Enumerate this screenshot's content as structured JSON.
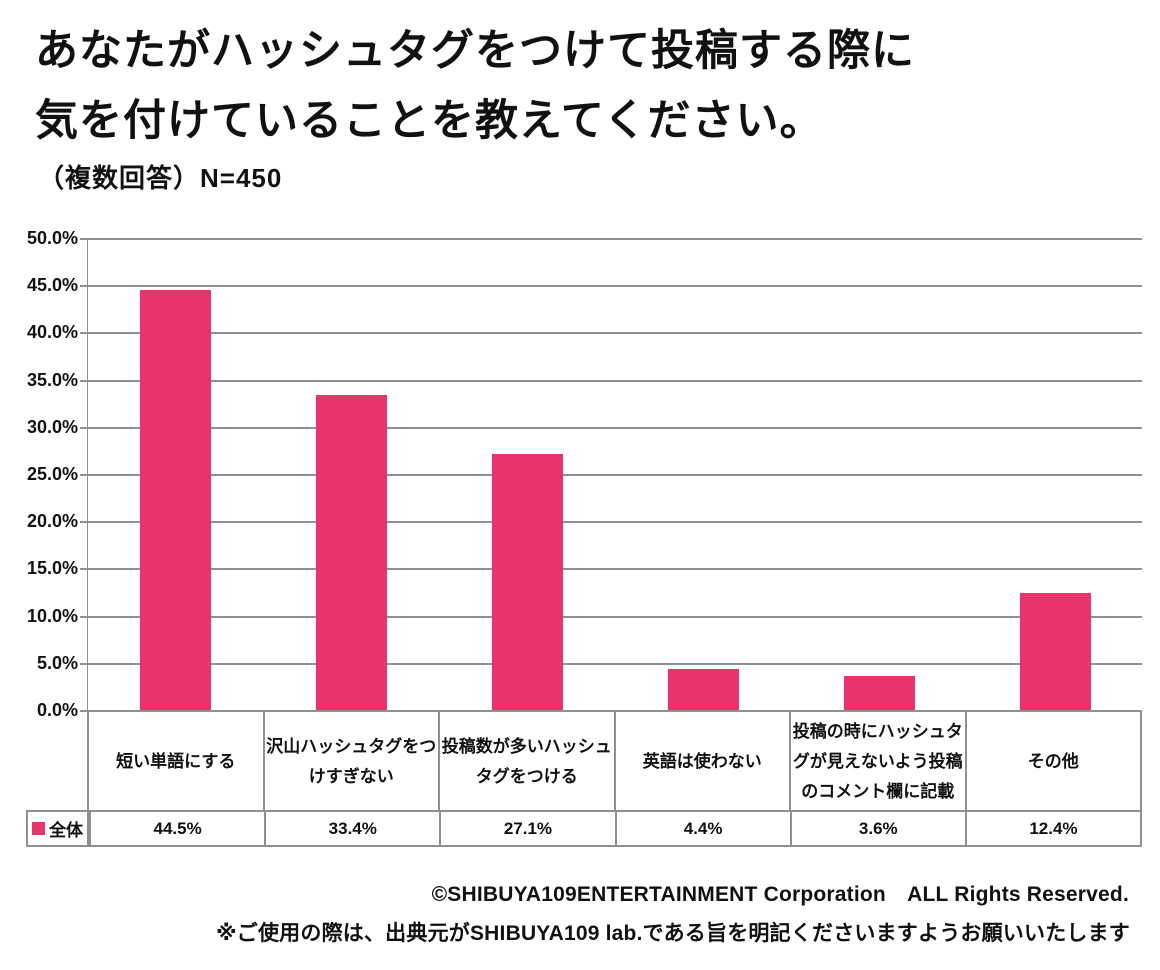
{
  "title": {
    "line1": "あなたがハッシュタグをつけて投稿する際に",
    "line2": "気を付けていることを教えてください。"
  },
  "subtitle": "（複数回答）N=450",
  "colors": {
    "bar": "#e9336b",
    "grid": "#8f8f8f",
    "text": "#111111",
    "background": "#ffffff"
  },
  "chart_data": {
    "type": "bar",
    "title": "あなたがハッシュタグをつけて投稿する際に気を付けていることを教えてください。",
    "subtitle": "（複数回答）N=450",
    "categories": [
      "短い単語にする",
      "沢山ハッシュタグをつけすぎない",
      "投稿数が多いハッシュタグをつける",
      "英語は使わない",
      "投稿の時にハッシュタグが見えないよう投稿のコメント欄に記載",
      "その他"
    ],
    "series": [
      {
        "name": "全体",
        "values": [
          44.5,
          33.4,
          27.1,
          4.4,
          3.6,
          12.4
        ]
      }
    ],
    "value_labels": [
      "44.5%",
      "33.4%",
      "27.1%",
      "4.4%",
      "3.6%",
      "12.4%"
    ],
    "xlabel": "",
    "ylabel": "",
    "ylim": [
      0,
      50
    ],
    "ytick_step": 5,
    "yticks": [
      "50.0%",
      "45.0%",
      "40.0%",
      "35.0%",
      "30.0%",
      "25.0%",
      "20.0%",
      "15.0%",
      "10.0%",
      "5.0%",
      "0.0%"
    ],
    "grid": true,
    "legend_position": "bottom-table-left"
  },
  "table": {
    "legend_label": "全体",
    "values": [
      "44.5%",
      "33.4%",
      "27.1%",
      "4.4%",
      "3.6%",
      "12.4%"
    ]
  },
  "footer": {
    "copyright": "©SHIBUYA109ENTERTAINMENT Corporation　ALL Rights Reserved.",
    "note": "※ご使用の際は、出典元がSHIBUYA109 lab.である旨を明記くださいますようお願いいたします"
  }
}
